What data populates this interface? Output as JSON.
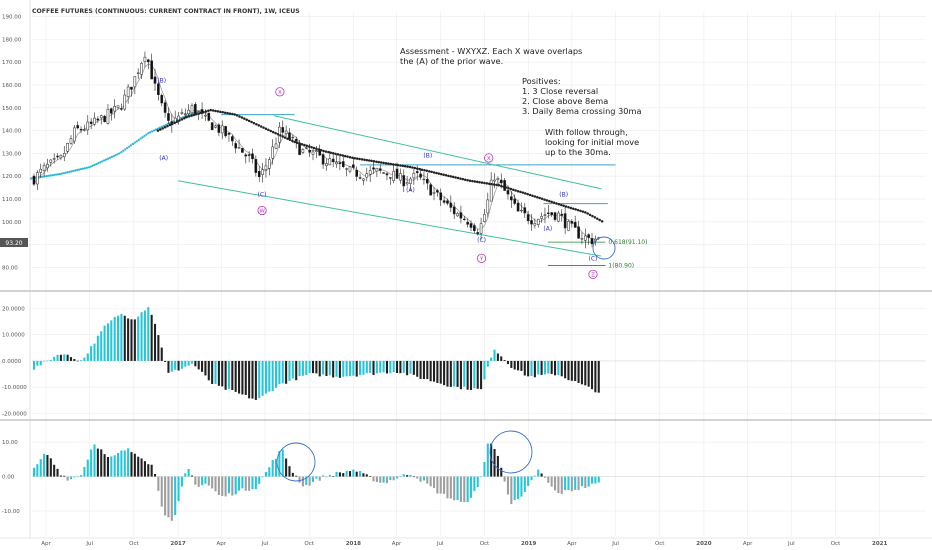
{
  "title": "COFFEE FUTURES (CONTINUOUS: CURRENT CONTRACT IN FRONT), 1W, ICEUS",
  "colors": {
    "bg": "#ffffff",
    "grid": "#ececec",
    "separator": "#8a8a8a",
    "bull": "#ffffff",
    "bear": "#111111",
    "wick": "#222222",
    "ema8": "#222222",
    "ma_line": "#29b6d6",
    "sma_gray": "#9e9e9e",
    "channel": "#3fbf9f",
    "hline": "#3aa5c9",
    "fib": "#2e7d32",
    "wave_small": "#2d2ec8",
    "wave_big": "#b92fb9",
    "hist_cyan": "#26c6da",
    "hist_black": "#202020",
    "hist_gray": "#9e9e9e",
    "circle": "#3a6fc9",
    "price_badge": "#555555"
  },
  "annotations": [
    "Assessment - WXYXZ. Each X wave overlaps",
    "the (A) of the prior wave.",
    "Positives:",
    "1. 3 Close reversal",
    "2. Close above 8ema",
    "3. Daily 8ema crossing 30ma",
    "With follow through,",
    "looking for initial move",
    "up to the 30ma."
  ],
  "price_badge": "93.20",
  "fib_labels": [
    "0.618(91.10)",
    "1(80.90)"
  ],
  "wave_labels": {
    "small": [
      "(B)",
      "(A)",
      "(C)",
      "(B)",
      "(A)",
      "(C)",
      "(B)",
      "(A)",
      "(C)"
    ],
    "big": [
      "X",
      "W",
      "X",
      "Y",
      "Z"
    ]
  },
  "chart_data": [
    {
      "type": "candlestick",
      "title": "COFFEE FUTURES (CONTINUOUS: CURRENT CONTRACT IN FRONT), 1W, ICEUS",
      "interval": "1W",
      "x_range": [
        "2016-03-07",
        "2021-03-01"
      ],
      "ylim": [
        71,
        192
      ],
      "y_ticks": [
        "190.00",
        "180.00",
        "170.00",
        "160.00",
        "150.00",
        "140.00",
        "130.00",
        "120.00",
        "110.00",
        "100.00",
        "93.20",
        "90.00",
        "80.00"
      ],
      "x_ticks": [
        "Apr",
        "Jul",
        "Oct",
        "2017",
        "Apr",
        "Jul",
        "Oct",
        "2018",
        "Apr",
        "Jul",
        "Oct",
        "2019",
        "Apr",
        "Jul",
        "Oct",
        "2020",
        "Apr",
        "Jul",
        "Oct",
        "2021"
      ],
      "close_path": [
        [
          "2016-03-07",
          119
        ],
        [
          "2016-04-01",
          124
        ],
        [
          "2016-05-01",
          127
        ],
        [
          "2016-06-01",
          140
        ],
        [
          "2016-07-01",
          142
        ],
        [
          "2016-08-01",
          146
        ],
        [
          "2016-09-01",
          150
        ],
        [
          "2016-10-01",
          162
        ],
        [
          "2016-10-25",
          175
        ],
        [
          "2016-11-15",
          158
        ],
        [
          "2016-12-10",
          143
        ],
        [
          "2017-01-05",
          146
        ],
        [
          "2017-02-01",
          150
        ],
        [
          "2017-03-01",
          144
        ],
        [
          "2017-04-01",
          140
        ],
        [
          "2017-05-01",
          134
        ],
        [
          "2017-06-01",
          127
        ],
        [
          "2017-06-20",
          119
        ],
        [
          "2017-07-10",
          128
        ],
        [
          "2017-08-01",
          140
        ],
        [
          "2017-08-20",
          137
        ],
        [
          "2017-09-15",
          131
        ],
        [
          "2017-10-15",
          129
        ],
        [
          "2017-11-15",
          126
        ],
        [
          "2017-12-20",
          122
        ],
        [
          "2018-01-20",
          121
        ],
        [
          "2018-02-20",
          122
        ],
        [
          "2018-03-20",
          121
        ],
        [
          "2018-04-15",
          118
        ],
        [
          "2018-05-15",
          120
        ],
        [
          "2018-06-01",
          116
        ],
        [
          "2018-07-01",
          110
        ],
        [
          "2018-08-01",
          104
        ],
        [
          "2018-09-01",
          100
        ],
        [
          "2018-09-20",
          96
        ],
        [
          "2018-10-05",
          106
        ],
        [
          "2018-10-20",
          121
        ],
        [
          "2018-11-10",
          114
        ],
        [
          "2018-12-10",
          104
        ],
        [
          "2019-01-10",
          101
        ],
        [
          "2019-02-10",
          104
        ],
        [
          "2019-03-05",
          103
        ],
        [
          "2019-03-25",
          98
        ],
        [
          "2019-04-20",
          94
        ],
        [
          "2019-05-12",
          92
        ],
        [
          "2019-05-28",
          93.2
        ]
      ],
      "overlays": [
        {
          "name": "",
          "kind": "ema8 (dotted black)",
          "values": [
            [
              "2016-11-20",
              140
            ],
            [
              "2017-01-20",
              146
            ],
            [
              "2017-03-10",
              149
            ],
            [
              "2017-05-01",
              147
            ],
            [
              "2017-07-01",
              141
            ],
            [
              "2017-09-01",
              135
            ],
            [
              "2017-11-01",
              131
            ],
            [
              "2018-01-01",
              128
            ],
            [
              "2018-03-01",
              126
            ],
            [
              "2018-05-01",
              124
            ],
            [
              "2018-07-01",
              121
            ],
            [
              "2018-09-01",
              118
            ],
            [
              "2018-11-01",
              116
            ],
            [
              "2019-01-01",
              112
            ],
            [
              "2019-03-01",
              108
            ],
            [
              "2019-05-01",
              104
            ],
            [
              "2019-06-05",
              100
            ]
          ]
        },
        {
          "name": "",
          "kind": "ma (dotted cyan)",
          "values": [
            [
              "2016-03-01",
              119
            ],
            [
              "2016-05-01",
              121
            ],
            [
              "2016-07-01",
              124
            ],
            [
              "2016-09-01",
              130
            ],
            [
              "2016-11-01",
              139
            ],
            [
              "2017-01-01",
              145
            ],
            [
              "2017-02-20",
              149
            ]
          ]
        }
      ],
      "channel_lines": [
        {
          "from": [
            "2017-07-20",
            146.5
          ],
          "to": [
            "2019-06-01",
            114.5
          ]
        },
        {
          "from": [
            "2017-01-01",
            118
          ],
          "to": [
            "2019-06-01",
            85
          ]
        }
      ],
      "horizontal_lines": [
        {
          "value": 147,
          "from": "2017-04-01",
          "to": "2017-09-01"
        },
        {
          "value": 125,
          "from": "2018-01-15",
          "to": "2019-07-01"
        },
        {
          "value": 108,
          "from": "2019-02-01",
          "to": "2019-06-15"
        }
      ],
      "fib_levels": [
        {
          "label": "0.618(91.10)",
          "value": 91.1
        },
        {
          "label": "1(80.90)",
          "value": 80.9
        }
      ],
      "wave_labels": [
        {
          "text": "(B)",
          "x": "2016-11-28",
          "y": 162,
          "group": "small"
        },
        {
          "text": "(A)",
          "x": "2016-12-02",
          "y": 128,
          "group": "small"
        },
        {
          "text": "X",
          "x": "2017-08-01",
          "y": 157,
          "group": "big"
        },
        {
          "text": "(C)",
          "x": "2017-06-25",
          "y": 112,
          "group": "small"
        },
        {
          "text": "W",
          "x": "2017-06-25",
          "y": 105,
          "group": "big"
        },
        {
          "text": "(B)",
          "x": "2018-06-05",
          "y": 129,
          "group": "small"
        },
        {
          "text": "(A)",
          "x": "2018-04-30",
          "y": 114,
          "group": "small"
        },
        {
          "text": "X",
          "x": "2018-10-10",
          "y": 128,
          "group": "big"
        },
        {
          "text": "(C)",
          "x": "2018-09-25",
          "y": 92,
          "group": "small"
        },
        {
          "text": "Y",
          "x": "2018-09-25",
          "y": 84,
          "group": "big"
        },
        {
          "text": "(B)",
          "x": "2019-03-15",
          "y": 112,
          "group": "small"
        },
        {
          "text": "(A)",
          "x": "2019-02-10",
          "y": 97,
          "group": "small"
        },
        {
          "text": "(C)",
          "x": "2019-05-15",
          "y": 84,
          "group": "small"
        },
        {
          "text": "Z",
          "x": "2019-05-15",
          "y": 77,
          "group": "big"
        }
      ]
    },
    {
      "type": "bar",
      "title": "",
      "ylim": [
        -21,
        24
      ],
      "y_ticks": [
        "20.0000",
        "10.0000",
        "0.0000",
        "-10.0000",
        "-20.0000"
      ],
      "x_range": [
        "2016-03-07",
        "2019-05-28"
      ],
      "series": [
        {
          "name": "",
          "path": [
            [
              "2016-03-07",
              -3
            ],
            [
              "2016-05-01",
              3
            ],
            [
              "2016-06-15",
              0
            ],
            [
              "2016-08-01",
              13
            ],
            [
              "2016-09-01",
              18
            ],
            [
              "2016-10-01",
              16
            ],
            [
              "2016-11-01",
              21
            ],
            [
              "2016-11-25",
              8
            ],
            [
              "2016-12-10",
              -5
            ],
            [
              "2017-02-01",
              -1
            ],
            [
              "2017-03-15",
              -9
            ],
            [
              "2017-06-15",
              -15
            ],
            [
              "2017-08-01",
              -9
            ],
            [
              "2017-10-01",
              -5
            ],
            [
              "2017-12-01",
              -6
            ],
            [
              "2018-02-01",
              -5
            ],
            [
              "2018-04-01",
              -4
            ],
            [
              "2018-06-01",
              -7
            ],
            [
              "2018-08-01",
              -10
            ],
            [
              "2018-09-25",
              -11
            ],
            [
              "2018-10-20",
              5
            ],
            [
              "2018-11-25",
              -2
            ],
            [
              "2019-01-01",
              -6
            ],
            [
              "2019-03-01",
              -5
            ],
            [
              "2019-05-28",
              -12
            ]
          ]
        }
      ]
    },
    {
      "type": "bar",
      "title": "",
      "ylim": [
        -17,
        15
      ],
      "y_ticks": [
        "10.00",
        "0.00",
        "-10.00"
      ],
      "x_range": [
        "2016-03-07",
        "2019-05-28"
      ],
      "series": [
        {
          "name": "",
          "path": [
            [
              "2016-03-07",
              2
            ],
            [
              "2016-04-01",
              7
            ],
            [
              "2016-05-01",
              1
            ],
            [
              "2016-05-20",
              -1
            ],
            [
              "2016-06-15",
              1
            ],
            [
              "2016-07-10",
              10
            ],
            [
              "2016-08-10",
              5
            ],
            [
              "2016-09-15",
              8
            ],
            [
              "2016-10-15",
              6
            ],
            [
              "2016-11-10",
              3
            ],
            [
              "2016-12-01",
              -10
            ],
            [
              "2016-12-22",
              -14
            ],
            [
              "2017-01-20",
              3
            ],
            [
              "2017-02-10",
              -3
            ],
            [
              "2017-03-01",
              -2
            ],
            [
              "2017-04-01",
              -6
            ],
            [
              "2017-05-15",
              -4
            ],
            [
              "2017-06-15",
              -3
            ],
            [
              "2017-07-15",
              4
            ],
            [
              "2017-08-05",
              8
            ],
            [
              "2017-08-25",
              2
            ],
            [
              "2017-09-20",
              -3
            ],
            [
              "2017-11-01",
              0
            ],
            [
              "2018-01-01",
              2
            ],
            [
              "2018-03-01",
              -2
            ],
            [
              "2018-05-01",
              1
            ],
            [
              "2018-07-01",
              -5
            ],
            [
              "2018-08-20",
              -8
            ],
            [
              "2018-09-20",
              -3
            ],
            [
              "2018-10-10",
              11
            ],
            [
              "2018-11-01",
              5
            ],
            [
              "2018-11-25",
              -8
            ],
            [
              "2018-12-20",
              -6
            ],
            [
              "2019-01-20",
              2
            ],
            [
              "2019-03-01",
              -5
            ],
            [
              "2019-05-28",
              -2
            ]
          ]
        }
      ]
    }
  ]
}
